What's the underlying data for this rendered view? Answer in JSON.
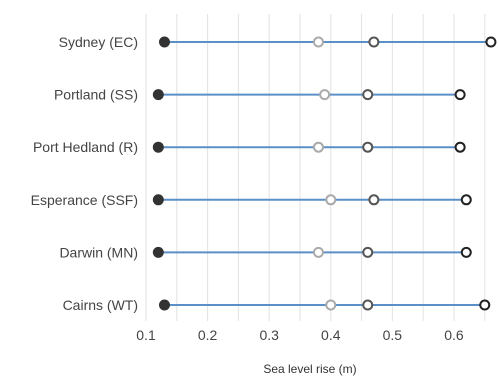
{
  "chart_data": {
    "type": "dot-range",
    "title": "",
    "xlabel": "Sea level rise (m)",
    "ylabel": "",
    "xlim": [
      0.1,
      0.665
    ],
    "xticks": [
      0.1,
      0.2,
      0.3,
      0.4,
      0.5,
      0.6
    ],
    "xtick_labels": [
      "0.1",
      "0.2",
      "0.3",
      "0.4",
      "0.5",
      "0.6"
    ],
    "grid": true,
    "legend": "none",
    "categories": [
      "Sydney (EC)",
      "Portland (SS)",
      "Port Hedland (R)",
      "Esperance (SSF)",
      "Darwin (MN)",
      "Cairns (WT)"
    ],
    "series": [
      {
        "values": [
          0.13,
          0.12,
          0.12,
          0.12,
          0.12,
          0.13
        ],
        "marker": "filled-circle",
        "color": "#333333"
      },
      {
        "values": [
          0.38,
          0.39,
          0.38,
          0.4,
          0.38,
          0.4
        ],
        "marker": "open-circle",
        "color": "#aaaaaa"
      },
      {
        "values": [
          0.47,
          0.46,
          0.46,
          0.47,
          0.46,
          0.46
        ],
        "marker": "open-circle",
        "color": "#555555"
      },
      {
        "values": [
          0.66,
          0.61,
          0.61,
          0.62,
          0.62,
          0.65
        ],
        "marker": "open-circle",
        "color": "#222222"
      }
    ],
    "colors": {
      "range_line": "#5b8fc7",
      "grid": "#e2e2e2",
      "background": "#ffffff"
    }
  }
}
